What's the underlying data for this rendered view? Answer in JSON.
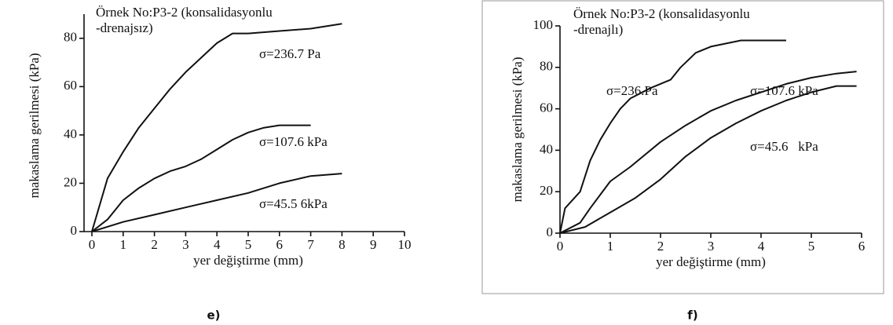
{
  "chart_data": [
    {
      "type": "line",
      "caption": "e)",
      "title_lines": [
        "Örnek No:P3-2 (konsalidasyonlu",
        "-drenajsız)"
      ],
      "xlabel": "yer değiştirme (mm)",
      "ylabel": "makaslama gerilmesi (kPa)",
      "xlim": [
        0,
        10
      ],
      "ylim": [
        0,
        90
      ],
      "xticks": [
        0,
        1,
        2,
        3,
        4,
        5,
        6,
        7,
        8,
        9,
        10
      ],
      "yticks": [
        0,
        20,
        40,
        60,
        80
      ],
      "series": [
        {
          "name": "σ=236.7 Pa",
          "color": "#111111",
          "x": [
            0,
            0.5,
            1,
            1.5,
            2,
            2.5,
            3,
            3.5,
            4,
            4.5,
            5,
            6,
            7,
            8
          ],
          "values": [
            0,
            22,
            33,
            43,
            51,
            59,
            66,
            72,
            78,
            82,
            82,
            83,
            84,
            86
          ]
        },
        {
          "name": "σ=107.6 kPa",
          "color": "#111111",
          "x": [
            0,
            0.5,
            1,
            1.5,
            2,
            2.5,
            3,
            3.5,
            4,
            4.5,
            5,
            5.5,
            6,
            7
          ],
          "values": [
            0,
            5,
            13,
            18,
            22,
            25,
            27,
            30,
            34,
            38,
            41,
            43,
            44,
            44
          ]
        },
        {
          "name": "σ=45.5 6kPa",
          "color": "#111111",
          "x": [
            0,
            1,
            2,
            3,
            4,
            5,
            6,
            7,
            8
          ],
          "values": [
            0,
            4,
            7,
            10,
            13,
            16,
            20,
            23,
            24
          ]
        }
      ]
    },
    {
      "type": "line",
      "caption": "f)",
      "title_lines": [
        "Örnek No:P3-2 (konsalidasyonlu",
        "-drenajlı)"
      ],
      "xlabel": "yer değiştirme (mm)",
      "ylabel": "makaslama gerilmesi (kPa)",
      "xlim": [
        0,
        6
      ],
      "ylim": [
        0,
        100
      ],
      "xticks": [
        0,
        1,
        2,
        3,
        4,
        5,
        6
      ],
      "yticks": [
        0,
        20,
        40,
        60,
        80,
        100
      ],
      "series": [
        {
          "name": "σ=236.Pa",
          "color": "#111111",
          "x": [
            0,
            0.1,
            0.4,
            0.6,
            0.8,
            1,
            1.2,
            1.4,
            1.8,
            2.2,
            2.4,
            2.7,
            3,
            3.4,
            3.6,
            4.5
          ],
          "values": [
            0,
            12,
            20,
            35,
            45,
            53,
            60,
            65,
            70,
            74,
            80,
            87,
            90,
            92,
            93,
            93
          ]
        },
        {
          "name": "σ=107.6 kPa",
          "color": "#111111",
          "x": [
            0,
            0.4,
            0.6,
            1,
            1.4,
            2,
            2.5,
            3,
            3.5,
            4,
            4.5,
            5,
            5.5,
            5.9
          ],
          "values": [
            0,
            5,
            12,
            25,
            32,
            44,
            52,
            59,
            64,
            68,
            72,
            75,
            77,
            78
          ]
        },
        {
          "name": "σ=45.6   kPa",
          "color": "#111111",
          "x": [
            0,
            0.5,
            1,
            1.5,
            2,
            2.5,
            3,
            3.5,
            4,
            4.5,
            5,
            5.5,
            5.9
          ],
          "values": [
            0,
            3,
            10,
            17,
            26,
            37,
            46,
            53,
            59,
            64,
            68,
            71,
            71
          ]
        }
      ]
    }
  ]
}
